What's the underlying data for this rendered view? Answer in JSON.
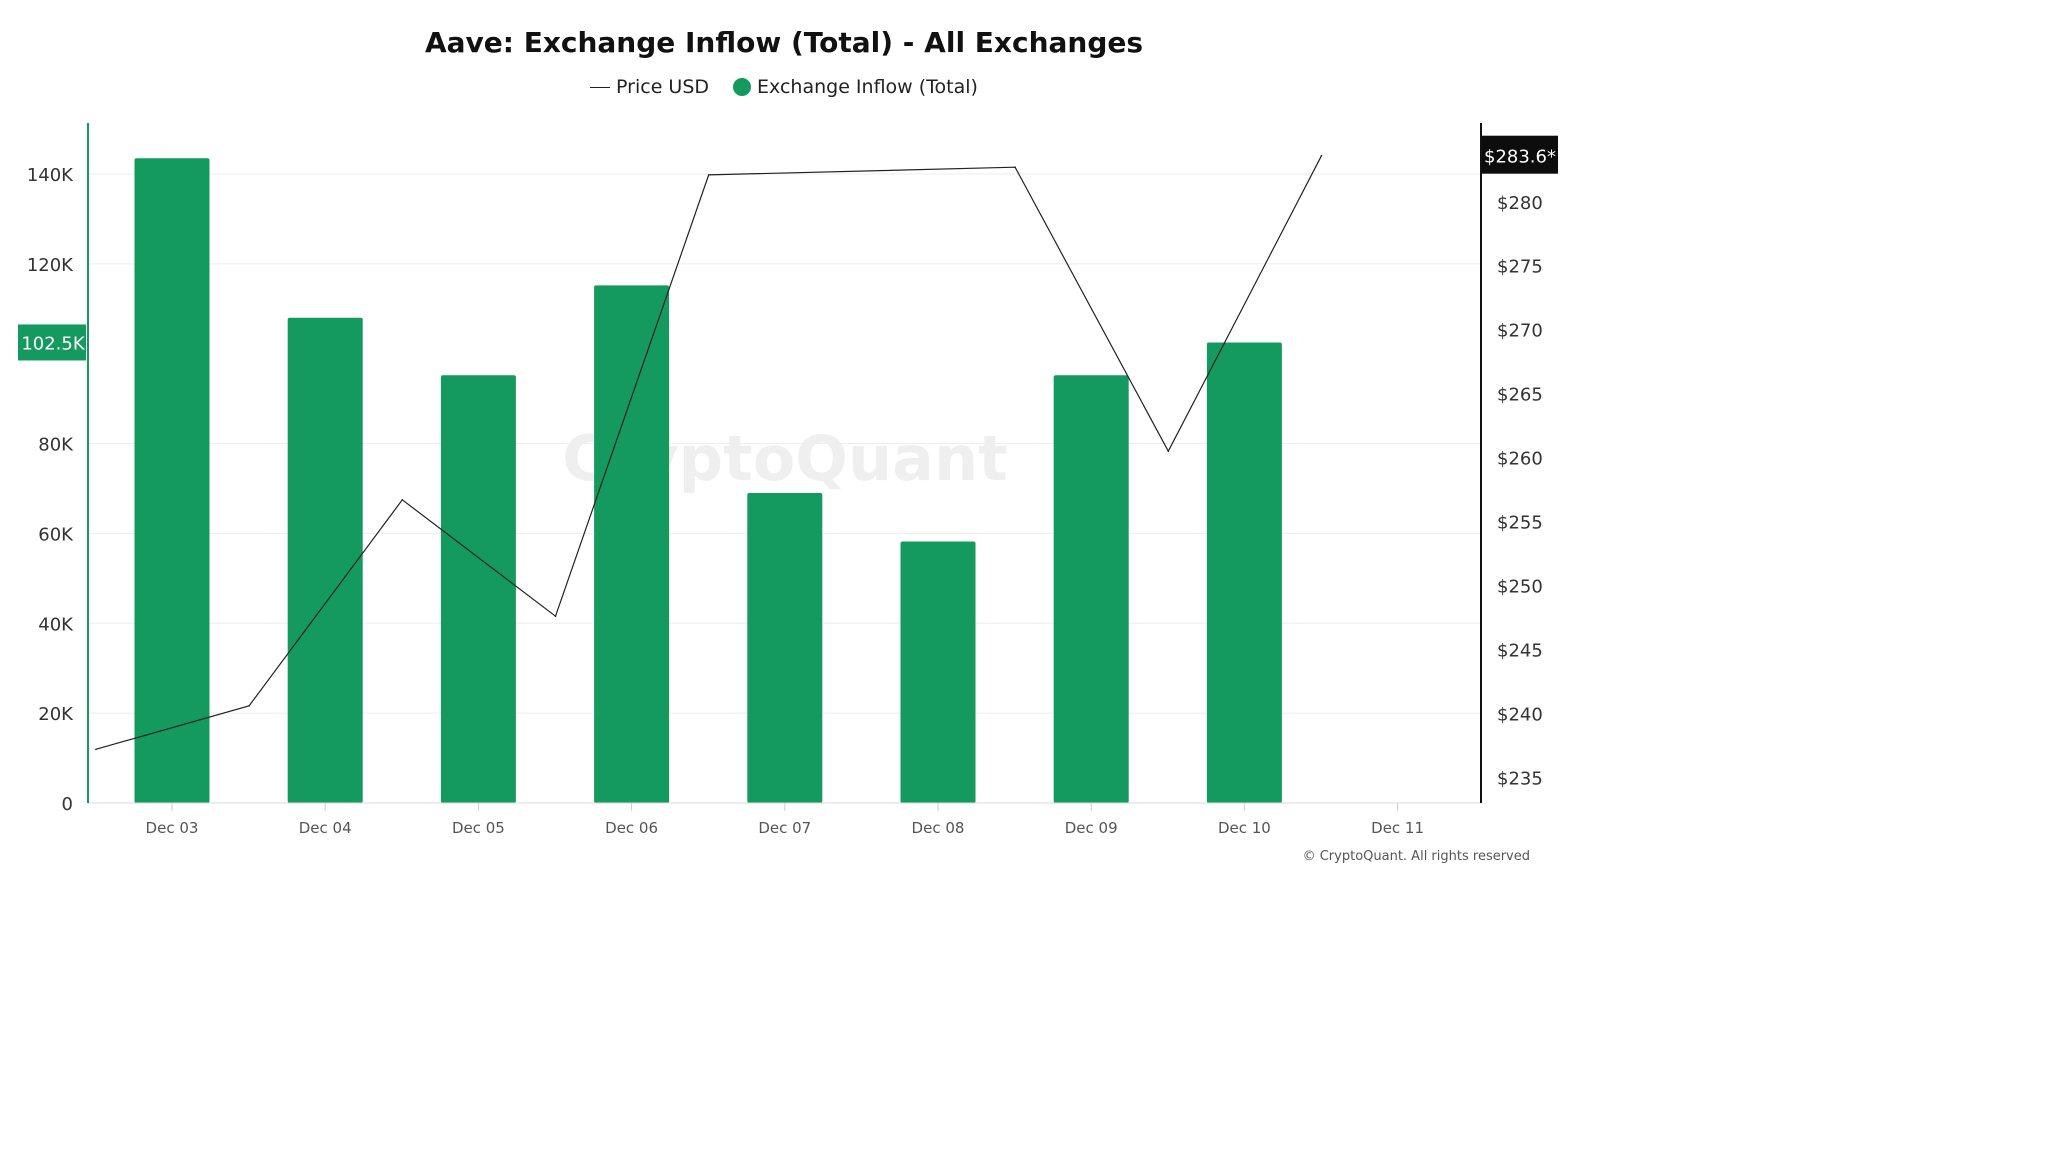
{
  "title": "Aave: Exchange Inflow (Total) - All Exchanges",
  "legend": {
    "price_label": "Price USD",
    "inflow_label": "Exchange Inflow (Total)"
  },
  "watermark": "CryptoQuant",
  "copyright": "© CryptoQuant. All rights reserved",
  "colors": {
    "bar": "#149a5e",
    "price_line": "#222222",
    "left_axis": "#149a5e",
    "right_axis": "#111111",
    "grid": "#eeeeee"
  },
  "chart_data": {
    "type": "bar",
    "categories": [
      "Dec 03",
      "Dec 04",
      "Dec 05",
      "Dec 06",
      "Dec 07",
      "Dec 08",
      "Dec 09",
      "Dec 10",
      "Dec 11"
    ],
    "series": [
      {
        "name": "Exchange Inflow (Total)",
        "type": "bar",
        "axis": "left",
        "values": [
          143500,
          108000,
          95200,
          115200,
          69000,
          58200,
          95200,
          102500,
          null
        ]
      },
      {
        "name": "Price USD",
        "type": "line",
        "axis": "right",
        "x": [
          "Dec 02 12:00",
          "Dec 03 12:00",
          "Dec 04 12:00",
          "Dec 05 12:00",
          "Dec 06 12:00",
          "Dec 07 12:00",
          "Dec 08 12:00",
          "Dec 09 12:00",
          "Dec 10 12:00"
        ],
        "values": [
          237.2,
          240.6,
          256.7,
          247.6,
          282.1,
          null,
          282.7,
          260.5,
          283.6
        ]
      }
    ],
    "y_left": {
      "ticks": [
        0,
        20000,
        40000,
        60000,
        80000,
        120000,
        140000
      ],
      "tick_labels": [
        "0",
        "20K",
        "40K",
        "60K",
        "80K",
        "120K",
        "140K"
      ],
      "range": [
        0,
        150900
      ]
    },
    "y_right": {
      "ticks": [
        235,
        240,
        245,
        250,
        255,
        260,
        265,
        270,
        275,
        280
      ],
      "tick_labels": [
        "$235",
        "$240",
        "$245",
        "$250",
        "$255",
        "$260",
        "$265",
        "$270",
        "$275",
        "$280"
      ],
      "range": [
        233,
        286
      ]
    },
    "current_left_label": "102.5K",
    "current_right_label": "$283.6*",
    "grid": true,
    "legend_position": "top-center"
  }
}
